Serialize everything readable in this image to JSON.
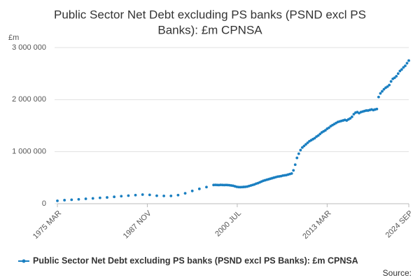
{
  "chart_data": {
    "type": "line",
    "title": [
      "Public Sector Net Debt excluding PS banks (PSND excl PS",
      "Banks): £m CPNSA"
    ],
    "y_label": "£m",
    "source": "Source:",
    "xlim": [
      "1975 MAR",
      "2024 SEP"
    ],
    "xticks": [
      "1975 MAR",
      "1987 NOV",
      "2000 JUL",
      "2013 MAR",
      "2024 SEP"
    ],
    "ylim": [
      0,
      3000000
    ],
    "yticks": [
      0,
      {
        "value": 1000000,
        "label": "1 000 000"
      },
      {
        "value": 2000000,
        "label": "2 000 000"
      },
      {
        "value": 3000000,
        "label": "3 000 000"
      }
    ],
    "grid": true,
    "legend": "bottom",
    "x": [
      "1975 MAR",
      "1976 MAR",
      "1977 MAR",
      "1978 MAR",
      "1979 MAR",
      "1980 MAR",
      "1981 MAR",
      "1982 MAR",
      "1983 MAR",
      "1984 MAR",
      "1985 MAR",
      "1986 MAR",
      "1987 MAR",
      "1988 MAR",
      "1989 MAR",
      "1990 MAR",
      "1991 MAR",
      "1992 MAR",
      "1993 MAR",
      "1994 MAR",
      "1995 MAR",
      "1996 MAR",
      "1997 MAR",
      "1997 JUN",
      "1997 SEP",
      "1997 DEC",
      "1998 MAR",
      "1998 JUN",
      "1998 SEP",
      "1998 DEC",
      "1999 MAR",
      "1999 JUN",
      "1999 SEP",
      "1999 DEC",
      "2000 MAR",
      "2000 JUN",
      "2000 SEP",
      "2000 DEC",
      "2001 MAR",
      "2001 JUN",
      "2001 SEP",
      "2001 DEC",
      "2002 MAR",
      "2002 JUN",
      "2002 SEP",
      "2002 DEC",
      "2003 MAR",
      "2003 JUN",
      "2003 SEP",
      "2003 DEC",
      "2004 MAR",
      "2004 JUN",
      "2004 SEP",
      "2004 DEC",
      "2005 MAR",
      "2005 JUN",
      "2005 SEP",
      "2005 DEC",
      "2006 MAR",
      "2006 JUN",
      "2006 SEP",
      "2006 DEC",
      "2007 MAR",
      "2007 JUN",
      "2007 SEP",
      "2007 DEC",
      "2008 MAR",
      "2008 JUN",
      "2008 SEP",
      "2008 DEC",
      "2009 MAR",
      "2009 JUN",
      "2009 SEP",
      "2009 DEC",
      "2010 MAR",
      "2010 JUN",
      "2010 SEP",
      "2010 DEC",
      "2011 MAR",
      "2011 JUN",
      "2011 SEP",
      "2011 DEC",
      "2012 MAR",
      "2012 JUN",
      "2012 SEP",
      "2012 DEC",
      "2013 MAR",
      "2013 JUN",
      "2013 SEP",
      "2013 DEC",
      "2014 MAR",
      "2014 JUN",
      "2014 SEP",
      "2014 DEC",
      "2015 MAR",
      "2015 JUN",
      "2015 SEP",
      "2015 DEC",
      "2016 MAR",
      "2016 JUN",
      "2016 SEP",
      "2016 DEC",
      "2017 MAR",
      "2017 JUN",
      "2017 SEP",
      "2017 DEC",
      "2018 MAR",
      "2018 JUN",
      "2018 SEP",
      "2018 DEC",
      "2019 MAR",
      "2019 JUN",
      "2019 SEP",
      "2019 DEC",
      "2020 MAR",
      "2020 JUN",
      "2020 SEP",
      "2020 DEC",
      "2021 MAR",
      "2021 JUN",
      "2021 SEP",
      "2021 DEC",
      "2022 MAR",
      "2022 JUN",
      "2022 SEP",
      "2022 DEC",
      "2023 MAR",
      "2023 JUN",
      "2023 SEP",
      "2023 DEC",
      "2024 MAR",
      "2024 JUN",
      "2024 SEP"
    ],
    "series": [
      {
        "name": "Public Sector Net Debt excluding PS banks (PSND excl PS Banks): £m CPNSA",
        "color": "#1a7fc1",
        "values": [
          55000,
          68000,
          76000,
          84000,
          94000,
          102000,
          113000,
          120000,
          132000,
          145000,
          155000,
          165000,
          175000,
          170000,
          153000,
          150000,
          150000,
          165000,
          200000,
          245000,
          285000,
          320000,
          360000,
          362000,
          360000,
          358000,
          362000,
          360000,
          358000,
          360000,
          358000,
          355000,
          350000,
          345000,
          335000,
          325000,
          320000,
          318000,
          320000,
          322000,
          325000,
          330000,
          340000,
          350000,
          360000,
          370000,
          385000,
          395000,
          410000,
          425000,
          440000,
          450000,
          460000,
          470000,
          480000,
          490000,
          500000,
          510000,
          520000,
          525000,
          530000,
          540000,
          545000,
          550000,
          560000,
          570000,
          580000,
          640000,
          750000,
          880000,
          960000,
          1030000,
          1080000,
          1110000,
          1140000,
          1170000,
          1200000,
          1220000,
          1240000,
          1260000,
          1290000,
          1310000,
          1340000,
          1370000,
          1390000,
          1410000,
          1440000,
          1460000,
          1490000,
          1510000,
          1530000,
          1550000,
          1570000,
          1580000,
          1590000,
          1600000,
          1610000,
          1600000,
          1620000,
          1640000,
          1670000,
          1720000,
          1750000,
          1760000,
          1740000,
          1760000,
          1770000,
          1780000,
          1790000,
          1790000,
          1800000,
          1810000,
          1800000,
          1810000,
          1820000,
          2050000,
          2120000,
          2160000,
          2200000,
          2230000,
          2250000,
          2280000,
          2350000,
          2400000,
          2420000,
          2450000,
          2500000,
          2550000,
          2580000,
          2620000,
          2650000,
          2700000,
          2750000
        ]
      }
    ]
  }
}
